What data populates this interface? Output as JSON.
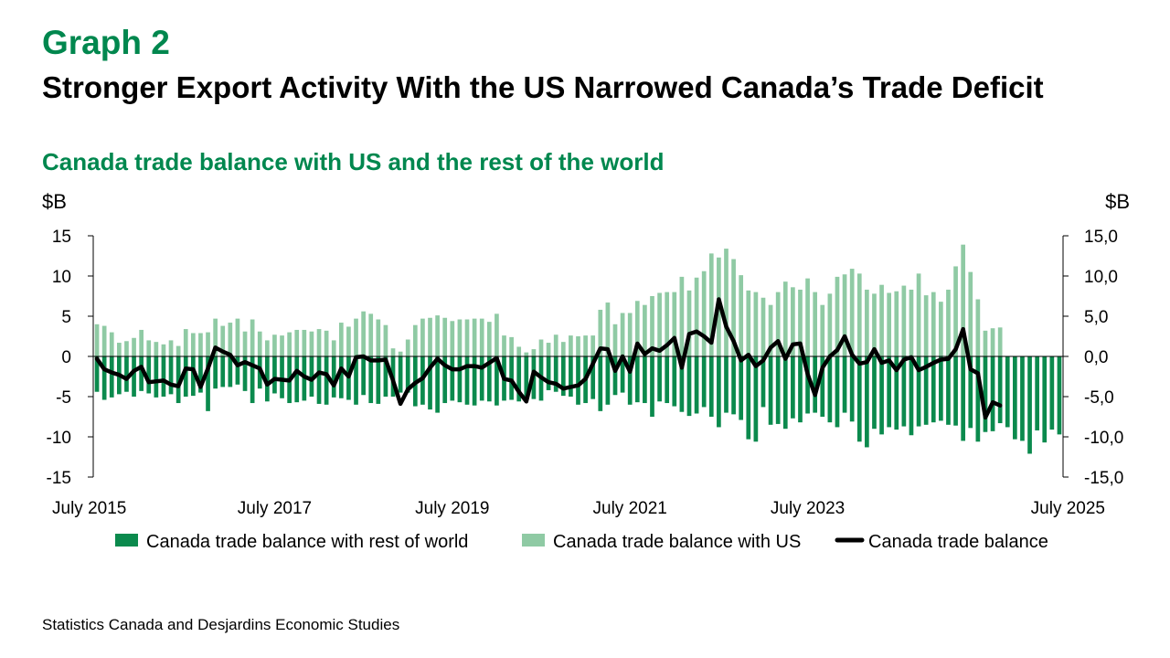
{
  "header": {
    "graph_label": "Graph 2",
    "title": "Stronger Export Activity With the US Narrowed Canada’s Trade Deficit"
  },
  "source": "Statistics Canada and Desjardins Economic Studies",
  "colors": {
    "rest_of_world": "#0b8a4d",
    "us": "#8fcaa4",
    "balance": "#000000",
    "accent": "#00874e"
  },
  "chart_data": {
    "type": "bar",
    "title": "Canada trade balance with US and the rest of the world",
    "ylabel_left": "$B",
    "ylabel_right": "$B",
    "ylim": [
      -15,
      15
    ],
    "yticks": [
      -15,
      -10,
      -5,
      0,
      5,
      10,
      15
    ],
    "ytick_labels_left": [
      "-15",
      "-10",
      "-5",
      "0",
      "5",
      "10",
      "15"
    ],
    "ytick_labels_right": [
      "-15,0",
      "-10,0",
      "-5,0",
      "0,0",
      "5,0",
      "10,0",
      "15,0"
    ],
    "x_start": "2015-07",
    "xtick_labels": [
      "July 2015",
      "July 2017",
      "July 2019",
      "July 2021",
      "July 2023",
      "July 2025"
    ],
    "legend": [
      "Canada trade balance with rest of world",
      "Canada trade balance with US",
      "Canada trade balance"
    ],
    "legend_position": "bottom",
    "stacked": true,
    "series": [
      {
        "name": "Canada trade balance with rest of world",
        "kind": "bar",
        "values": [
          -4.4,
          -5.4,
          -5.1,
          -4.7,
          -4.4,
          -5.0,
          -4.3,
          -4.6,
          -5.1,
          -5.0,
          -4.7,
          -5.8,
          -5.0,
          -4.9,
          -4.5,
          -6.8,
          -4.0,
          -3.8,
          -3.8,
          -3.5,
          -4.3,
          -5.8,
          -4.0,
          -5.6,
          -4.6,
          -5.2,
          -5.8,
          -5.7,
          -5.5,
          -5.0,
          -5.9,
          -6.0,
          -5.1,
          -5.2,
          -5.4,
          -6.0,
          -4.8,
          -5.8,
          -5.9,
          -5.0,
          -5.0,
          -4.5,
          -4.5,
          -6.2,
          -6.0,
          -6.6,
          -7.0,
          -5.8,
          -5.5,
          -5.7,
          -6.0,
          -6.1,
          -5.5,
          -5.6,
          -6.1,
          -5.5,
          -5.4,
          -5.6,
          -5.4,
          -5.3,
          -5.5,
          -4.2,
          -4.4,
          -4.9,
          -5.0,
          -6.0,
          -5.8,
          -5.3,
          -6.8,
          -6.0,
          -4.8,
          -4.5,
          -6.0,
          -5.7,
          -5.8,
          -7.5,
          -5.6,
          -5.8,
          -6.2,
          -6.9,
          -7.4,
          -7.1,
          -6.3,
          -7.5,
          -8.8,
          -7.0,
          -7.2,
          -7.9,
          -10.3,
          -10.6,
          -6.3,
          -8.5,
          -8.4,
          -9.0,
          -7.7,
          -8.2,
          -7.1,
          -7.0,
          -7.5,
          -8.2,
          -8.8,
          -7.0,
          -8.1,
          -10.6,
          -11.3,
          -9.0,
          -9.7,
          -8.8,
          -9.1,
          -8.7,
          -9.8,
          -8.7,
          -8.5,
          -8.2,
          -8.0,
          -8.5,
          -8.6,
          -10.5,
          -8.9,
          -10.6,
          -9.4,
          -9.3,
          -8.3,
          -8.8,
          -10.3,
          -10.5,
          -12.1,
          -9.2,
          -10.7,
          -9.1,
          -9.7
        ]
      },
      {
        "name": "Canada trade balance with US",
        "kind": "bar",
        "values": [
          4.0,
          3.8,
          3.0,
          1.7,
          1.9,
          2.3,
          3.3,
          2.0,
          1.8,
          1.5,
          2.0,
          1.3,
          3.4,
          2.9,
          2.9,
          3.0,
          4.7,
          3.8,
          4.2,
          4.7,
          3.1,
          4.6,
          3.1,
          2.0,
          2.7,
          2.6,
          3.0,
          3.3,
          3.3,
          3.1,
          3.4,
          3.2,
          2.0,
          4.2,
          3.7,
          4.7,
          5.6,
          5.3,
          4.6,
          3.9,
          1.0,
          0.6,
          2.1,
          3.9,
          4.7,
          4.8,
          5.1,
          4.8,
          4.4,
          4.6,
          4.6,
          4.7,
          4.7,
          4.3,
          5.3,
          2.6,
          2.4,
          1.2,
          0.5,
          0.9,
          2.1,
          1.7,
          2.7,
          1.8,
          2.6,
          2.5,
          2.6,
          2.6,
          5.8,
          6.7,
          4.0,
          5.4,
          5.4,
          6.9,
          6.4,
          7.5,
          7.9,
          8.0,
          8.0,
          9.9,
          8.2,
          9.8,
          10.6,
          12.8,
          12.3,
          13.4,
          12.1,
          10.1,
          8.2,
          8.0,
          7.3,
          6.4,
          8.0,
          9.3,
          8.6,
          8.3,
          9.7,
          8.0,
          6.4,
          7.8,
          9.9,
          10.2,
          10.9,
          10.3,
          8.3,
          7.8,
          8.9,
          7.9,
          8.1,
          8.8,
          8.3,
          10.3,
          7.6,
          8.0,
          6.8,
          8.3,
          11.2,
          13.9,
          10.5,
          7.1,
          3.2,
          3.5,
          3.6
        ]
      },
      {
        "name": "Canada trade balance",
        "kind": "line",
        "values": [
          -0.3,
          -1.6,
          -2.0,
          -2.3,
          -2.8,
          -1.8,
          -1.3,
          -3.2,
          -3.1,
          -3.0,
          -3.5,
          -3.7,
          -1.5,
          -1.6,
          -3.8,
          -1.5,
          1.1,
          0.6,
          0.2,
          -1.1,
          -0.7,
          -1.1,
          -1.5,
          -3.5,
          -2.8,
          -2.9,
          -3.0,
          -1.8,
          -2.5,
          -2.9,
          -2.0,
          -2.2,
          -3.6,
          -1.5,
          -2.5,
          -0.1,
          0.0,
          -0.5,
          -0.5,
          -0.4,
          -3.0,
          -5.9,
          -4.1,
          -3.3,
          -2.7,
          -1.4,
          -0.3,
          -1.1,
          -1.6,
          -1.6,
          -1.2,
          -1.2,
          -1.4,
          -0.8,
          -0.2,
          -2.8,
          -3.0,
          -4.4,
          -5.6,
          -1.9,
          -2.6,
          -3.2,
          -3.4,
          -4.0,
          -3.8,
          -3.6,
          -2.8,
          -0.9,
          1.0,
          0.9,
          -1.8,
          0.0,
          -1.9,
          1.6,
          0.3,
          1.0,
          0.7,
          1.4,
          2.3,
          -1.4,
          2.8,
          3.1,
          2.5,
          1.7,
          7.1,
          3.7,
          1.9,
          -0.5,
          0.2,
          -1.2,
          -0.5,
          1.1,
          1.9,
          -0.3,
          1.5,
          1.6,
          -2.2,
          -4.8,
          -1.4,
          0.0,
          0.8,
          2.5,
          0.2,
          -0.9,
          -0.7,
          0.9,
          -0.8,
          -0.5,
          -1.7,
          -0.4,
          -0.1,
          -1.7,
          -1.3,
          -0.8,
          -0.4,
          -0.3,
          0.9,
          3.4,
          -1.6,
          -2.1,
          -7.6,
          -5.7,
          -6.1
        ]
      }
    ]
  }
}
